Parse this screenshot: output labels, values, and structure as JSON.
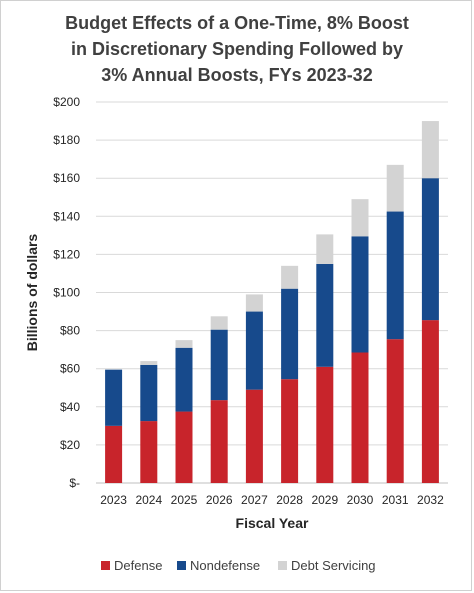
{
  "chart_data": {
    "type": "bar",
    "stacked": true,
    "title": "Budget Effects of a One-Time, 8% Boost in Discretionary Spending Followed by 3% Annual Boosts, FYs 2023-32",
    "title_lines": [
      "Budget Effects of a One-Time, 8% Boost",
      "in Discretionary Spending Followed by",
      "3% Annual Boosts, FYs 2023-32"
    ],
    "xlabel": "Fiscal Year",
    "ylabel": "Billions of dollars",
    "categories": [
      "2023",
      "2024",
      "2025",
      "2026",
      "2027",
      "2028",
      "2029",
      "2030",
      "2031",
      "2032"
    ],
    "ylim": [
      0,
      200
    ],
    "yticks": [
      0,
      20,
      40,
      60,
      80,
      100,
      120,
      140,
      160,
      180,
      200
    ],
    "ytick_labels": [
      "$-",
      "$20",
      "$40",
      "$60",
      "$80",
      "$100",
      "$120",
      "$140",
      "$160",
      "$180",
      "$200"
    ],
    "grid": true,
    "legend_position": "bottom",
    "series": [
      {
        "name": "Defense",
        "color": "#c8242b",
        "values": [
          30,
          32.5,
          37.5,
          43.5,
          49,
          54.5,
          61,
          68.5,
          75.5,
          85.5
        ]
      },
      {
        "name": "Nondefense",
        "color": "#174a8c",
        "values": [
          29.5,
          29.5,
          33.5,
          37,
          41,
          47.5,
          54,
          61,
          67,
          74.5
        ]
      },
      {
        "name": "Debt Servicing",
        "color": "#d3d3d3",
        "values": [
          0,
          2,
          4,
          7,
          9,
          12,
          15.5,
          19.5,
          24.5,
          30
        ]
      }
    ]
  }
}
